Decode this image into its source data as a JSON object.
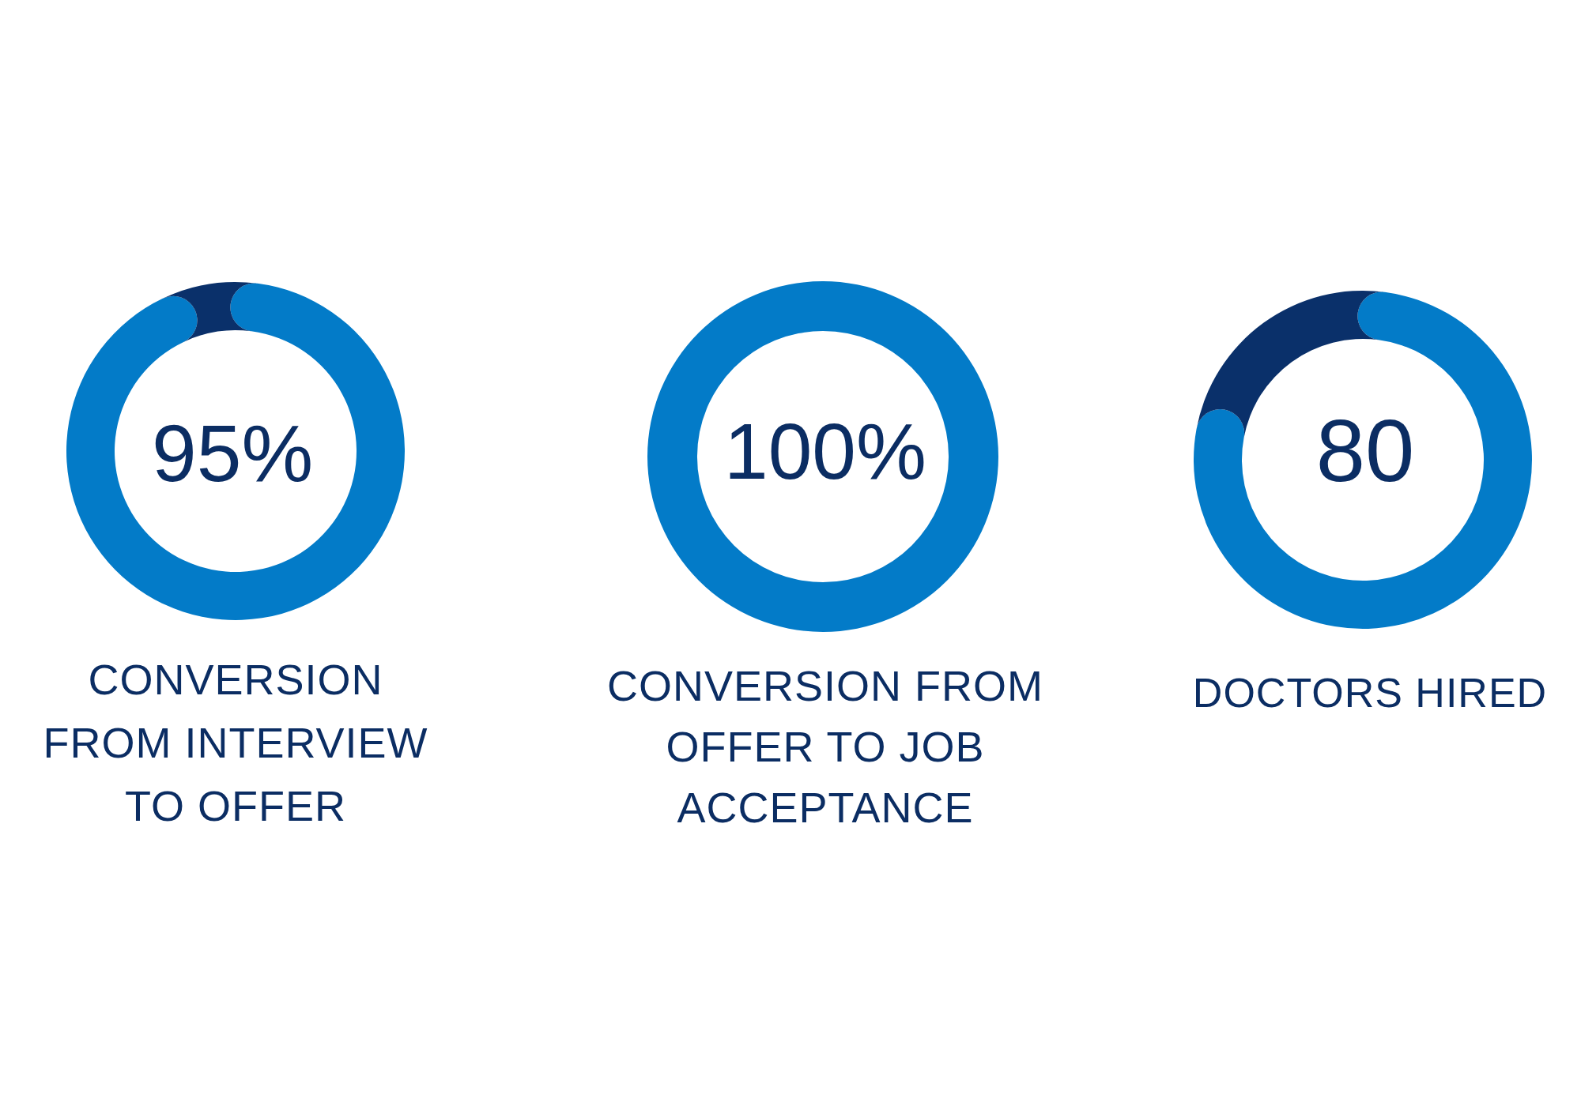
{
  "chart_data": [
    {
      "type": "donut",
      "title": "CONVERSION\nFROM INTERVIEW\nTO OFFER",
      "categories": [
        null,
        null
      ],
      "values": [
        95,
        5
      ],
      "colors": [
        "#037bc8",
        "#0a306a"
      ],
      "value_labels": [
        "95%",
        null
      ]
    },
    {
      "type": "donut",
      "title": "CONVERSION FROM\nOFFER TO JOB\nACCEPTANCE",
      "categories": [
        null
      ],
      "values": [
        100
      ],
      "colors": [
        "#037bc8"
      ],
      "value_labels": [
        "100%"
      ]
    },
    {
      "type": "donut",
      "title": "DOCTORS HIRED",
      "categories": [
        null,
        null
      ],
      "values": [
        80,
        20
      ],
      "colors": [
        "#037bc8",
        "#0a306a"
      ],
      "value_labels": [
        "80",
        null
      ]
    }
  ]
}
